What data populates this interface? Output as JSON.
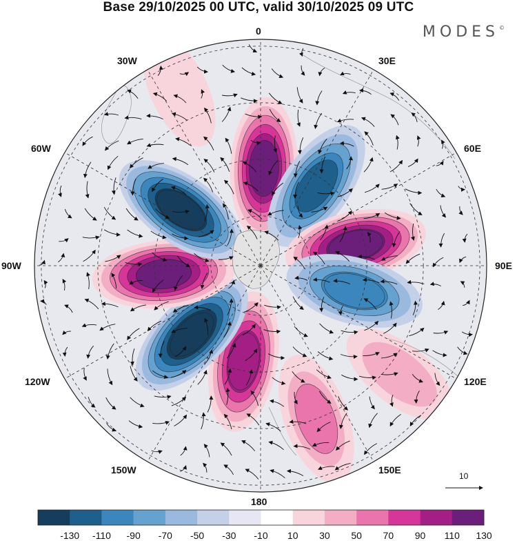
{
  "title": "Base 29/10/2025 00 UTC, valid 30/10/2025 09 UTC",
  "brand": "MODES",
  "brand_mark": "©",
  "longitude_labels": {
    "lon_0": "0",
    "lon_30e": "30E",
    "lon_60e": "60E",
    "lon_90e": "90E",
    "lon_120e": "120E",
    "lon_150e": "150E",
    "lon_180": "180",
    "lon_150w": "150W",
    "lon_120w": "120W",
    "lon_90w": "90W",
    "lon_60w": "60W",
    "lon_30w": "30W"
  },
  "reference_vector_label": "10",
  "colorbar": {
    "ticks": [
      "-130",
      "-110",
      "-90",
      "-70",
      "-50",
      "-30",
      "-10",
      "10",
      "30",
      "50",
      "70",
      "90",
      "110",
      "130"
    ],
    "colors": [
      "#163d5c",
      "#1f5f8c",
      "#3a86bd",
      "#66a2cf",
      "#9ab9de",
      "#c4cfe8",
      "#e6e7f2",
      "#ffffff",
      "#f8d5dc",
      "#f3adc4",
      "#ea75ac",
      "#d63697",
      "#a31f86",
      "#6c1f7a"
    ]
  },
  "chart_data": {
    "type": "polar_stereographic_field",
    "projection": "South polar stereographic",
    "field_units_range": [
      -140,
      140
    ],
    "anomalies": [
      {
        "name": "near-0",
        "lon": 2,
        "value": 115
      },
      {
        "name": "near-35E",
        "lon": 35,
        "value": -95
      },
      {
        "name": "near-80E",
        "lon": 78,
        "value": 125
      },
      {
        "name": "near-105E",
        "lon": 105,
        "value": -85
      },
      {
        "name": "near-125E",
        "lon": 128,
        "value": 35
      },
      {
        "name": "near-160E",
        "lon": 160,
        "value": 55
      },
      {
        "name": "near-170W",
        "lon": -170,
        "value": 105
      },
      {
        "name": "near-135W",
        "lon": -135,
        "value": -130
      },
      {
        "name": "near-95W",
        "lon": -95,
        "value": 120
      },
      {
        "name": "near-55W",
        "lon": -55,
        "value": -125
      },
      {
        "name": "near-25W",
        "lon": -25,
        "value": 25
      }
    ]
  }
}
